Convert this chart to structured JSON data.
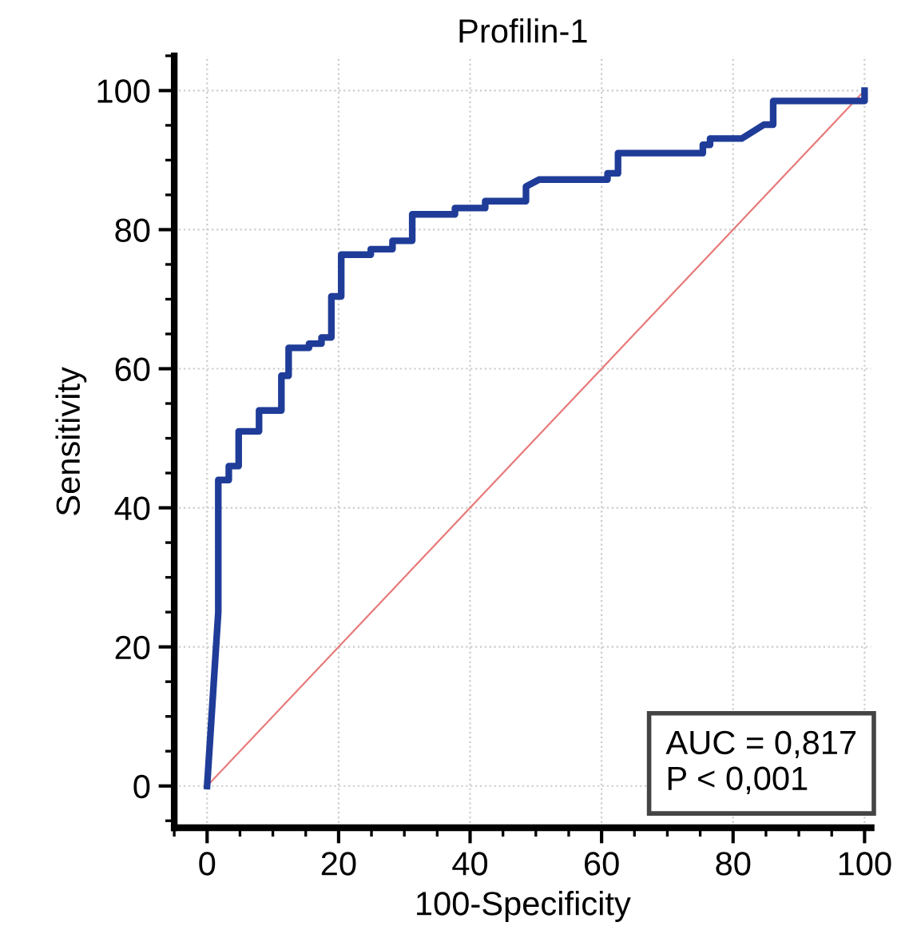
{
  "chart_data": {
    "type": "line",
    "title": "Profilin-1",
    "xlabel": "100-Specificity",
    "ylabel": "Sensitivity",
    "xlim": [
      -5,
      101
    ],
    "ylim": [
      -6,
      105
    ],
    "xticks": [
      0,
      20,
      40,
      60,
      80,
      100
    ],
    "yticks": [
      0,
      20,
      40,
      60,
      80,
      100
    ],
    "grid": true,
    "line_style": "solid",
    "marker": "none",
    "series": [
      {
        "color": "#1f3c98",
        "x": [
          0,
          1.7,
          1.7,
          3.3,
          3.3,
          4.8,
          4.8,
          7.9,
          7.9,
          11.3,
          11.3,
          12.4,
          12.4,
          15.5,
          15.5,
          17.4,
          17.4,
          18.9,
          18.9,
          20.4,
          20.4,
          24.9,
          24.9,
          28.2,
          28.2,
          31.2,
          31.2,
          37.7,
          37.7,
          42.3,
          42.3,
          48.5,
          48.5,
          50.5,
          53.4,
          60.9,
          60.9,
          62.5,
          62.5,
          75.4,
          75.4,
          76.5,
          76.5,
          81.3,
          84.7,
          86.1,
          86.1,
          100,
          100
        ],
        "values": [
          0,
          25,
          44,
          44,
          46,
          46,
          51,
          51,
          54,
          54,
          59,
          59,
          63,
          63,
          63.6,
          63.6,
          64.5,
          64.5,
          70.4,
          70.4,
          76.4,
          76.4,
          77.2,
          77.2,
          78.4,
          78.4,
          82.2,
          82.2,
          83.1,
          83.1,
          84.1,
          84.1,
          86.2,
          87.2,
          87.2,
          87.2,
          88.1,
          88.1,
          91,
          91,
          92.2,
          92.2,
          93.1,
          93.1,
          95.1,
          95.1,
          98.5,
          98.5,
          100
        ]
      },
      {
        "color": "#e87a7a",
        "x": [
          0,
          100
        ],
        "values": [
          0,
          100
        ]
      }
    ],
    "annotations": [
      "AUC = 0,817",
      "P < 0,001"
    ]
  }
}
